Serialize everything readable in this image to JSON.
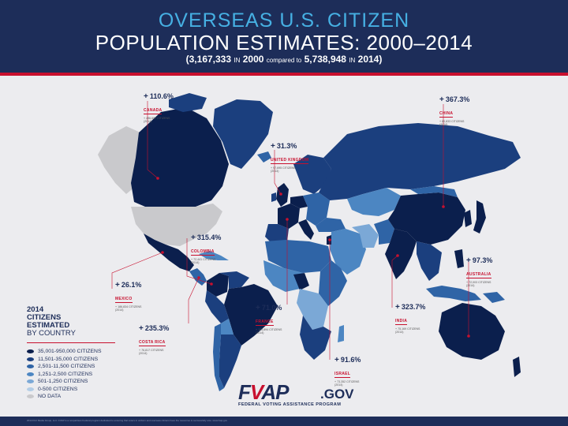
{
  "header": {
    "title_line1": "OVERSEAS U.S. CITIZEN",
    "title_line2": "POPULATION ESTIMATES: 2000–2014",
    "sub_2000_value": "(3,167,333",
    "sub_in1": "IN",
    "sub_year1": "2000",
    "sub_compared": "compared to",
    "sub_2014_value": "5,738,948",
    "sub_in2": "IN",
    "sub_year2": "2014)"
  },
  "callouts": [
    {
      "id": "canada",
      "plus": "+",
      "pct": "110.6%",
      "country": "CANADA",
      "citizens": "+ 496,687 CITIZENS",
      "year": "(2014)"
    },
    {
      "id": "uk",
      "plus": "+",
      "pct": "31.3%",
      "country": "UNITED KINGDOM",
      "citizens": "+ 97,695 CITIZENS",
      "year": "(2014)"
    },
    {
      "id": "china",
      "plus": "+",
      "pct": "367.3%",
      "country": "CHINA",
      "citizens": "+ 80,833 CITIZENS",
      "year": "(2014)"
    },
    {
      "id": "colombia",
      "plus": "+",
      "pct": "315.4%",
      "country": "COLOMBIA",
      "citizens": "+ 72,441 CITIZENS",
      "year": "(2014)"
    },
    {
      "id": "australia",
      "plus": "+",
      "pct": "97.3%",
      "country": "AUSTRALIA",
      "citizens": "+ 72,003 CITIZENS",
      "year": "(2014)"
    },
    {
      "id": "mexico",
      "plus": "+",
      "pct": "26.1%",
      "country": "MEXICO",
      "citizens": "+ 186,834 CITIZENS",
      "year": "(2014)"
    },
    {
      "id": "france",
      "plus": "+",
      "pct": "71.0%",
      "country": "FRANCE",
      "citizens": "+ 105,894 CITIZENS",
      "year": "(2014)"
    },
    {
      "id": "india",
      "plus": "+",
      "pct": "323.7%",
      "country": "INDIA",
      "citizens": "+ 75,169 CITIZENS",
      "year": "(2014)"
    },
    {
      "id": "costarica",
      "plus": "+",
      "pct": "235.3%",
      "country": "COSTA RICA",
      "citizens": "+ 76,817 CITIZENS",
      "year": "(2014)"
    },
    {
      "id": "israel",
      "plus": "+",
      "pct": "91.6%",
      "country": "ISRAEL",
      "citizens": "+ 73,352 CITIZENS",
      "year": "(2014)"
    }
  ],
  "legend": {
    "title_bold_1": "2014",
    "title_bold_2": "CITIZENS",
    "title_bold_3": "ESTIMATED",
    "title_normal": "BY COUNTRY",
    "items": [
      {
        "label": "35,001-950,000 CITIZENS",
        "color": "#0b1f4d"
      },
      {
        "label": "11,501-35,000 CITIZENS",
        "color": "#1b3f7e"
      },
      {
        "label": "2,501-11,500 CITIZENS",
        "color": "#2f64a6"
      },
      {
        "label": "1,251-2,500 CITIZENS",
        "color": "#4c86c2"
      },
      {
        "label": "501-1,250 CITIZENS",
        "color": "#7ba8d6"
      },
      {
        "label": "0-500 CITIZENS",
        "color": "#b3cde6"
      },
      {
        "label": "NO DATA",
        "color": "#c9c9cc"
      }
    ]
  },
  "logo": {
    "mark_f": "F",
    "mark_v": "V",
    "mark_ap": "AP",
    "mark_gov": ".GOV",
    "tagline": "FEDERAL VOTING ASSISTANCE PROGRAM"
  },
  "footer": {
    "text": "2014 Port Media Group, LLC. FVAP is a nonpartisan Federal program dedicated to ensuring that voters in uniform and overseas citizens have the resources to successfully vote. www.fvap.gov"
  },
  "colors": {
    "navy": "#1d2d59",
    "accent_blue": "#46b0e3",
    "red": "#c8102e",
    "background": "#ececef"
  }
}
